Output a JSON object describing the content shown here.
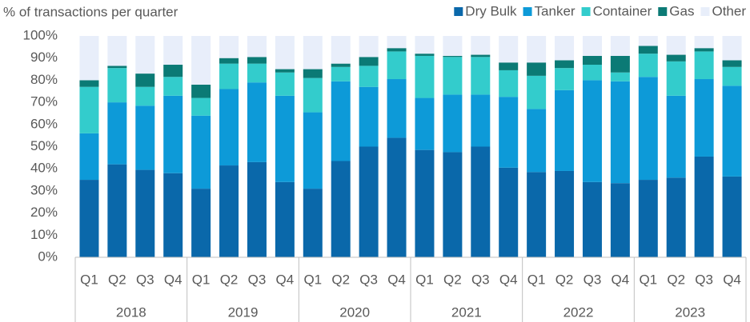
{
  "chart_data": {
    "type": "stacked_bar",
    "subtitle": "% of transactions per quarter",
    "categories": [
      "Q1",
      "Q2",
      "Q3",
      "Q4",
      "Q1",
      "Q2",
      "Q3",
      "Q4",
      "Q1",
      "Q2",
      "Q3",
      "Q4",
      "Q1",
      "Q2",
      "Q3",
      "Q4",
      "Q1",
      "Q2",
      "Q3",
      "Q4",
      "Q1",
      "Q2",
      "Q3",
      "Q4"
    ],
    "years": [
      "2018",
      "2019",
      "2020",
      "2021",
      "2022",
      "2023"
    ],
    "series": [
      {
        "name": "Dry Bulk",
        "color": "#0a68aa",
        "values": [
          35,
          42,
          39.5,
          38,
          31,
          41.5,
          43,
          34,
          31,
          43.5,
          50,
          54,
          48.5,
          47.5,
          50,
          40.5,
          38.5,
          39,
          34,
          33.5,
          35,
          36,
          45.5,
          36.5
        ]
      },
      {
        "name": "Tanker",
        "color": "#0d9ad8",
        "values": [
          21,
          28,
          29,
          35,
          33,
          34.5,
          36,
          39,
          34.5,
          36,
          27,
          26.5,
          23.5,
          26,
          23.5,
          32,
          28.5,
          36.5,
          46,
          46,
          46.5,
          37,
          35,
          41
        ]
      },
      {
        "name": "Container",
        "color": "#33cccc",
        "values": [
          21,
          15.5,
          8.5,
          8.5,
          8,
          11.5,
          8.5,
          10.5,
          15.5,
          6.5,
          9.5,
          12.5,
          19,
          17,
          17,
          12,
          15,
          10,
          7,
          4,
          10.5,
          15.5,
          12.5,
          8.5
        ]
      },
      {
        "name": "Gas",
        "color": "#0b7a75",
        "values": [
          3,
          1,
          6,
          5.5,
          6,
          2.5,
          3,
          1.5,
          4,
          1.5,
          4,
          1.5,
          1,
          0.5,
          1,
          3.5,
          6,
          3.5,
          4,
          7.5,
          3.5,
          3,
          1.5,
          3
        ]
      },
      {
        "name": "Other",
        "color": "#e8eefa",
        "values": [
          20,
          13.5,
          17,
          13,
          22,
          10,
          9.5,
          15,
          15,
          12.5,
          9.5,
          5.5,
          8,
          9,
          8.5,
          12,
          12,
          11,
          9,
          9,
          4.5,
          8.5,
          5.5,
          11
        ]
      }
    ],
    "ylim": [
      0,
      100
    ],
    "yticks": [
      {
        "value": 0,
        "label": "0%"
      },
      {
        "value": 10,
        "label": "10%"
      },
      {
        "value": 20,
        "label": "20%"
      },
      {
        "value": 30,
        "label": "30%"
      },
      {
        "value": 40,
        "label": "40%"
      },
      {
        "value": 50,
        "label": "50%"
      },
      {
        "value": 60,
        "label": "60%"
      },
      {
        "value": 70,
        "label": "70%"
      },
      {
        "value": 80,
        "label": "80%"
      },
      {
        "value": 90,
        "label": "90%"
      },
      {
        "value": 100,
        "label": "100%"
      }
    ],
    "legend": "top-right"
  }
}
